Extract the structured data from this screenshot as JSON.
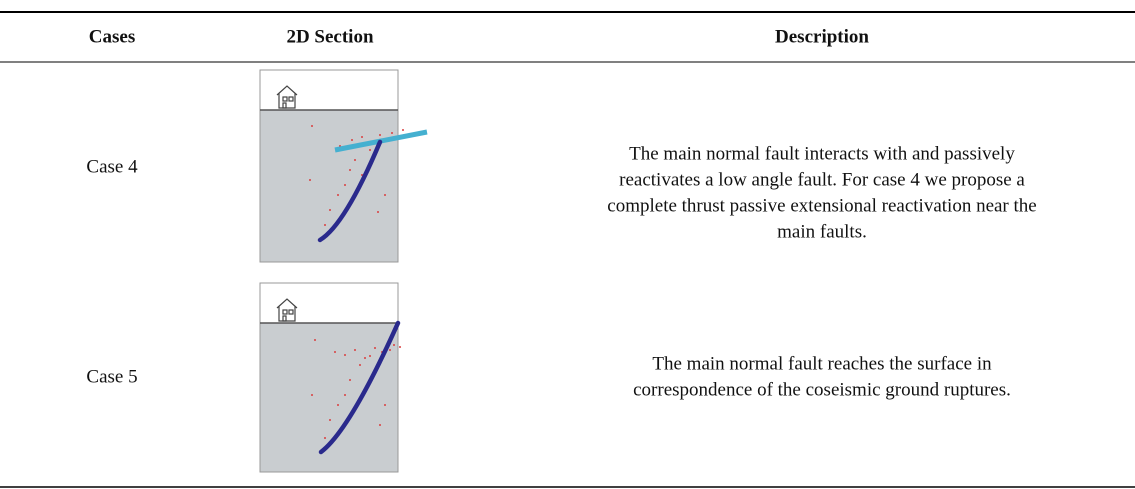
{
  "table": {
    "headers": [
      "Cases",
      "2D Section",
      "Description"
    ],
    "rows": [
      {
        "case": "Case 4",
        "description": [
          "The main normal fault interacts with and passively",
          "reactivates a low angle fault. For case 4 we propose a",
          "complete thrust passive extensional reactivation near the",
          "main faults."
        ]
      },
      {
        "case": "Case 5",
        "description": [
          "The main normal fault reaches the surface in",
          "correspondence of the coseismic ground ruptures."
        ]
      }
    ]
  }
}
